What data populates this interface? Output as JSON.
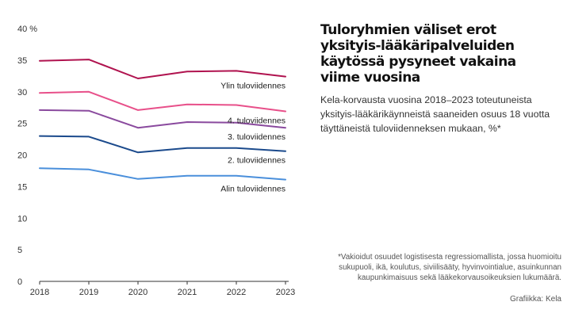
{
  "header": {
    "title": "Tuloryhmien väliset erot yksityis-lääkäripalveluiden käytössä pysyneet vakaina viime vuosina",
    "subtitle": "Kela-korvausta vuosina 2018–2023 toteutuneista yksityis-lääkärikäynneistä saaneiden osuus 18 vuotta täyttäneistä tuloviidenneksen mukaan, %*"
  },
  "footnote": "*Vakioidut osuudet logistisesta regressiomallista, jossa huomioitu sukupuoli, ikä, koulutus, siviilisääty, hyvinvointialue, asuinkunnan kaupunkimaisuus sekä lääkekorvausoikeuksien lukumäärä.",
  "credit": "Grafiikka: Kela",
  "chart_data": {
    "type": "line",
    "x": [
      2018,
      2019,
      2020,
      2021,
      2022,
      2023
    ],
    "xlim": [
      2018,
      2023
    ],
    "ylim": [
      0,
      40
    ],
    "yticks": [
      0,
      5,
      10,
      15,
      20,
      25,
      30,
      35,
      40
    ],
    "ytick_labels": [
      "0",
      "5",
      "10",
      "15",
      "20",
      "25",
      "30",
      "35",
      "40 %"
    ],
    "grid": false,
    "series": [
      {
        "name": "Ylin tuloviidennes",
        "color": "#b0134f",
        "values": [
          34.9,
          35.1,
          32.1,
          33.2,
          33.3,
          32.4
        ]
      },
      {
        "name": "4. tuloviidennes",
        "color": "#e8508a",
        "values": [
          29.8,
          30.0,
          27.1,
          28.0,
          27.9,
          26.9
        ]
      },
      {
        "name": "3. tuloviidennes",
        "color": "#8a4a9e",
        "values": [
          27.1,
          27.0,
          24.3,
          25.2,
          25.1,
          24.3
        ]
      },
      {
        "name": "2. tuloviidennes",
        "color": "#1b4a8c",
        "values": [
          23.0,
          22.9,
          20.4,
          21.1,
          21.1,
          20.6
        ]
      },
      {
        "name": "Alin tuloviidennes",
        "color": "#4a8fdb",
        "values": [
          17.9,
          17.7,
          16.2,
          16.7,
          16.7,
          16.1
        ]
      }
    ]
  }
}
